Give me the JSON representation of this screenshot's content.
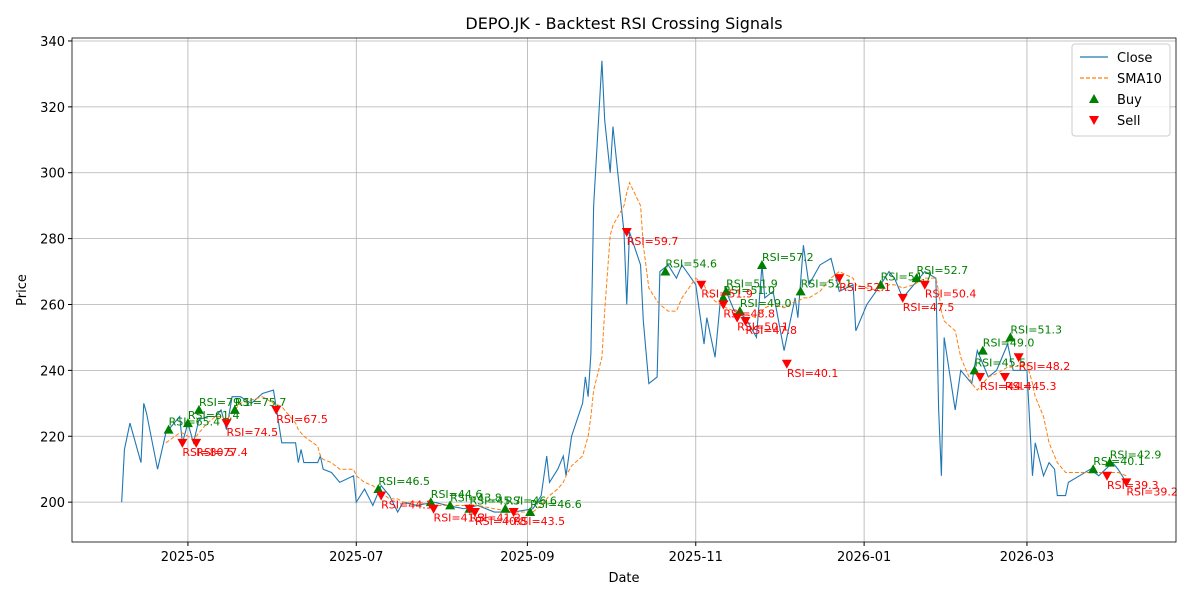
{
  "chart_data": {
    "type": "line",
    "title": "DEPO.JK - Backtest RSI Crossing Signals",
    "xlabel": "Date",
    "ylabel": "Price",
    "xlim": [
      "2025-03-20",
      "2026-04-24"
    ],
    "xticks": [
      {
        "value": "2025-05-01",
        "label": "2025-05"
      },
      {
        "value": "2025-07-01",
        "label": "2025-07"
      },
      {
        "value": "2025-09-01",
        "label": "2025-09"
      },
      {
        "value": "2025-11-01",
        "label": "2025-11"
      },
      {
        "value": "2026-01-01",
        "label": "2026-01"
      },
      {
        "value": "2026-03-01",
        "label": "2026-03"
      }
    ],
    "ylim": [
      187.9,
      340.9
    ],
    "yticks": [
      200,
      220,
      240,
      260,
      280,
      300,
      320,
      340
    ],
    "grid": true,
    "legend": "upper right",
    "x": [
      "2025-04-07",
      "2025-04-08",
      "2025-04-10",
      "2025-04-14",
      "2025-04-15",
      "2025-04-16",
      "2025-04-20",
      "2025-04-23",
      "2025-04-28",
      "2025-04-29",
      "2025-05-01",
      "2025-05-03",
      "2025-05-05",
      "2025-05-08",
      "2025-05-11",
      "2025-05-13",
      "2025-05-15",
      "2025-05-17",
      "2025-05-20",
      "2025-05-24",
      "2025-05-28",
      "2025-06-01",
      "2025-06-04",
      "2025-06-09",
      "2025-06-10",
      "2025-06-11",
      "2025-06-12",
      "2025-06-17",
      "2025-06-18",
      "2025-06-19",
      "2025-06-22",
      "2025-06-25",
      "2025-06-30",
      "2025-07-01",
      "2025-07-04",
      "2025-07-07",
      "2025-07-10",
      "2025-07-13",
      "2025-07-16",
      "2025-07-18",
      "2025-07-23",
      "2025-07-29",
      "2025-08-03",
      "2025-08-09",
      "2025-08-14",
      "2025-08-20",
      "2025-08-27",
      "2025-09-03",
      "2025-09-06",
      "2025-09-08",
      "2025-09-09",
      "2025-09-12",
      "2025-09-14",
      "2025-09-15",
      "2025-09-17",
      "2025-09-21",
      "2025-09-22",
      "2025-09-23",
      "2025-09-24",
      "2025-09-25",
      "2025-09-28",
      "2025-09-29",
      "2025-10-01",
      "2025-10-02",
      "2025-10-06",
      "2025-10-07",
      "2025-10-08",
      "2025-10-12",
      "2025-10-13",
      "2025-10-15",
      "2025-10-18",
      "2025-10-19",
      "2025-10-22",
      "2025-10-25",
      "2025-10-27",
      "2025-11-01",
      "2025-11-04",
      "2025-11-05",
      "2025-11-08",
      "2025-11-10",
      "2025-11-12",
      "2025-11-15",
      "2025-11-19",
      "2025-11-23",
      "2025-11-25",
      "2025-11-26",
      "2025-11-29",
      "2025-12-03",
      "2025-12-07",
      "2025-12-08",
      "2025-12-10",
      "2025-12-12",
      "2025-12-16",
      "2025-12-20",
      "2025-12-23",
      "2025-12-28",
      "2025-12-29",
      "2026-01-02",
      "2026-01-07",
      "2026-01-10",
      "2026-01-12",
      "2026-01-15",
      "2026-01-19",
      "2026-01-23",
      "2026-01-27",
      "2026-01-28",
      "2026-01-29",
      "2026-01-30",
      "2026-02-03",
      "2026-02-05",
      "2026-02-09",
      "2026-02-11",
      "2026-02-15",
      "2026-02-18",
      "2026-02-22",
      "2026-02-24",
      "2026-03-01",
      "2026-03-03",
      "2026-03-04",
      "2026-03-07",
      "2026-03-09",
      "2026-03-11",
      "2026-03-12",
      "2026-03-15",
      "2026-03-16",
      "2026-03-20",
      "2026-03-24",
      "2026-03-27",
      "2026-04-01",
      "2026-04-03",
      "2026-04-06"
    ],
    "series": [
      {
        "name": "Close",
        "color": "#1f77b4",
        "style": "solid",
        "values": [
          200,
          216,
          224,
          212,
          230,
          227,
          210,
          221,
          226,
          218,
          224,
          218,
          225,
          226,
          226,
          228,
          222,
          232,
          232,
          230,
          233,
          234,
          218,
          218,
          212,
          216,
          212,
          212,
          214,
          210,
          209,
          206,
          208,
          200,
          204,
          199,
          205,
          202,
          197,
          200,
          199,
          200,
          199,
          198,
          199,
          197,
          197,
          198,
          202,
          214,
          206,
          210,
          214,
          208,
          220,
          230,
          238,
          232,
          245,
          290,
          334,
          316,
          300,
          314,
          282,
          260,
          282,
          272,
          255,
          236,
          238,
          270,
          272,
          268,
          272,
          266,
          248,
          256,
          244,
          262,
          264,
          258,
          256,
          250,
          272,
          262,
          264,
          246,
          262,
          256,
          278,
          266,
          272,
          274,
          264,
          266,
          252,
          260,
          266,
          270,
          268,
          262,
          266,
          270,
          268,
          228,
          208,
          250,
          228,
          240,
          236,
          246,
          238,
          240,
          248,
          240,
          240,
          208,
          218,
          208,
          212,
          210,
          202,
          202,
          206,
          208,
          210,
          208,
          212,
          210,
          206
        ]
      },
      {
        "name": "SMA10",
        "color": "#ff7f0e",
        "style": "dashed",
        "values": [
          null,
          null,
          null,
          null,
          null,
          null,
          null,
          218,
          221,
          221,
          220,
          219,
          221,
          224,
          226,
          226,
          225,
          227,
          230,
          231,
          232,
          230,
          229,
          224,
          222,
          221,
          220,
          217,
          214,
          213,
          212,
          210,
          210,
          208,
          206,
          205,
          203,
          201,
          201,
          200,
          200,
          199,
          199,
          199,
          199,
          198,
          197,
          197,
          199,
          201,
          202,
          204,
          206,
          208,
          211,
          214,
          217,
          220,
          226,
          234,
          244,
          258,
          281,
          284,
          290,
          294,
          297,
          290,
          278,
          265,
          261,
          260,
          258,
          258,
          262,
          268,
          266,
          264,
          261,
          260,
          259,
          258,
          257,
          256,
          258,
          259,
          260,
          259,
          261,
          261,
          262,
          262,
          264,
          268,
          270,
          268,
          266,
          265,
          264,
          266,
          266,
          265,
          266,
          268,
          268,
          264,
          258,
          255,
          252,
          244,
          236,
          234,
          238,
          239,
          241,
          241,
          242,
          236,
          232,
          226,
          218,
          214,
          212,
          209,
          209,
          209,
          209,
          209,
          209,
          209,
          208
        ]
      },
      {
        "name": "Buy",
        "color": "green",
        "type": "scatter",
        "marker": "triangle-up",
        "x": [
          "2025-04-24",
          "2025-05-01",
          "2025-05-05",
          "2025-05-18",
          "2025-07-09",
          "2025-07-28",
          "2025-08-04",
          "2025-08-11",
          "2025-08-24",
          "2025-09-02",
          "2025-10-21",
          "2025-11-11",
          "2025-11-12",
          "2025-11-17",
          "2025-11-25",
          "2025-12-09",
          "2026-01-07",
          "2026-01-20",
          "2026-02-10",
          "2026-02-13",
          "2026-02-23",
          "2026-03-25",
          "2026-03-31"
        ],
        "values": [
          222,
          224,
          228,
          228,
          204,
          200,
          199,
          198,
          198,
          197,
          270,
          262,
          264,
          258,
          272,
          264,
          266,
          268,
          240,
          246,
          250,
          210,
          212
        ],
        "value_labels": [
          "RSI=65.4",
          "RSI=61.4",
          "RSI=79.1",
          "RSI=75.7",
          "RSI=46.5",
          "RSI=44.6",
          "RSI=43.8",
          "RSI=45.7",
          "RSI=46.6",
          "RSI=46.6",
          "RSI=54.6",
          "RSI=51.0",
          "RSI=51.9",
          "RSI=49.0",
          "RSI=57.2",
          "RSI=52.1",
          "RSI=54.7",
          "RSI=52.7",
          "RSI=45.5",
          "RSI=49.0",
          "RSI=51.3",
          "RSI=40.1",
          "RSI=42.9"
        ]
      },
      {
        "name": "Sell",
        "color": "red",
        "type": "scatter",
        "marker": "triangle-down",
        "x": [
          "2025-04-29",
          "2025-05-04",
          "2025-05-15",
          "2025-06-02",
          "2025-07-10",
          "2025-07-29",
          "2025-08-11",
          "2025-08-13",
          "2025-08-27",
          "2025-10-07",
          "2025-11-03",
          "2025-11-11",
          "2025-11-16",
          "2025-11-19",
          "2025-12-04",
          "2025-12-23",
          "2026-01-15",
          "2026-01-23",
          "2026-02-12",
          "2026-02-21",
          "2026-02-26",
          "2026-03-30",
          "2026-04-06"
        ],
        "values": [
          218,
          218,
          224,
          228,
          202,
          198,
          198,
          197,
          197,
          282,
          266,
          260,
          256,
          255,
          242,
          268,
          262,
          266,
          238,
          238,
          244,
          208,
          206
        ],
        "value_labels": [
          "RSI=80.5",
          "RSI=77.4",
          "RSI=74.5",
          "RSI=67.5",
          "RSI=44.1",
          "RSI=41.3",
          "RSI=41.2",
          "RSI=40.8",
          "RSI=43.5",
          "RSI=59.7",
          "RSI=51.9",
          "RSI=48.8",
          "RSI=50.1",
          "RSI=47.8",
          "RSI=40.1",
          "RSI=52.1",
          "RSI=47.5",
          "RSI=50.4",
          "RSI=44.4",
          "RSI=45.3",
          "RSI=48.2",
          "RSI=39.3",
          "RSI=39.2"
        ]
      }
    ]
  }
}
